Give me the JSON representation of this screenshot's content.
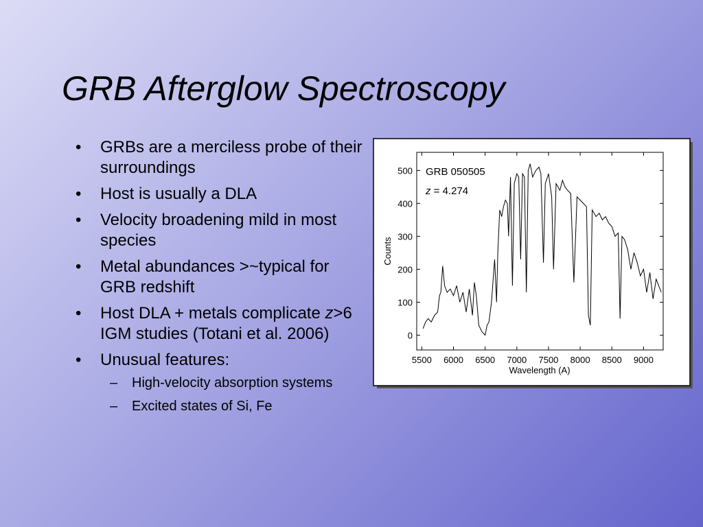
{
  "slide": {
    "title": "GRB Afterglow Spectroscopy",
    "bullets": [
      {
        "text": "GRBs are a merciless probe of their surroundings"
      },
      {
        "text": "Host is usually a DLA"
      },
      {
        "text": "Velocity broadening mild in most species"
      },
      {
        "text": "Metal abundances >~typical for GRB redshift"
      },
      {
        "text": "Host DLA + metals complicate",
        "italic": "z",
        "rest": ">6 IGM studies (Totani et al. 2006)"
      },
      {
        "text": "Unusual features:",
        "sub_bullets": [
          "High-velocity absorption systems",
          "Excited states of Si, Fe"
        ]
      }
    ]
  },
  "chart_data": {
    "type": "line",
    "title": "GRB 050505",
    "annotation": {
      "variable": "z",
      "text": "= 4.274"
    },
    "x_label": "Wavelength  (A)",
    "y_label": "Counts",
    "color": "#000000",
    "x": [
      5520,
      5560,
      5600,
      5650,
      5700,
      5750,
      5780,
      5800,
      5830,
      5860,
      5900,
      5950,
      6000,
      6050,
      6100,
      6150,
      6200,
      6250,
      6300,
      6330,
      6360,
      6400,
      6450,
      6500,
      6530,
      6560,
      6600,
      6630,
      6650,
      6680,
      6700,
      6730,
      6760,
      6790,
      6820,
      6850,
      6870,
      6900,
      6930,
      6960,
      7000,
      7030,
      7060,
      7090,
      7120,
      7150,
      7180,
      7210,
      7250,
      7300,
      7350,
      7380,
      7420,
      7450,
      7500,
      7550,
      7580,
      7620,
      7680,
      7720,
      7760,
      7800,
      7850,
      7900,
      7950,
      8000,
      8050,
      8100,
      8130,
      8160,
      8190,
      8250,
      8300,
      8350,
      8400,
      8450,
      8500,
      8550,
      8600,
      8630,
      8660,
      8700,
      8750,
      8800,
      8850,
      8900,
      8950,
      9000,
      9050,
      9100,
      9150,
      9200,
      9240,
      9280
    ],
    "values": [
      20,
      40,
      50,
      40,
      60,
      70,
      120,
      130,
      210,
      150,
      130,
      140,
      120,
      150,
      100,
      130,
      70,
      140,
      60,
      160,
      120,
      30,
      10,
      0,
      30,
      40,
      100,
      180,
      230,
      100,
      250,
      380,
      360,
      390,
      410,
      400,
      300,
      480,
      150,
      460,
      490,
      480,
      230,
      490,
      480,
      130,
      500,
      520,
      480,
      500,
      510,
      490,
      220,
      460,
      490,
      420,
      200,
      460,
      440,
      470,
      450,
      440,
      430,
      160,
      420,
      410,
      400,
      390,
      60,
      30,
      380,
      360,
      370,
      350,
      360,
      340,
      330,
      300,
      310,
      50,
      300,
      290,
      260,
      200,
      250,
      220,
      180,
      200,
      130,
      190,
      110,
      170,
      150,
      130
    ],
    "xlim": [
      5420,
      9310
    ],
    "ylim": [
      -45,
      555
    ],
    "xticks": [
      5500,
      6000,
      6500,
      7000,
      7500,
      8000,
      8500,
      9000
    ],
    "yticks": [
      0,
      100,
      200,
      300,
      400,
      500
    ]
  }
}
